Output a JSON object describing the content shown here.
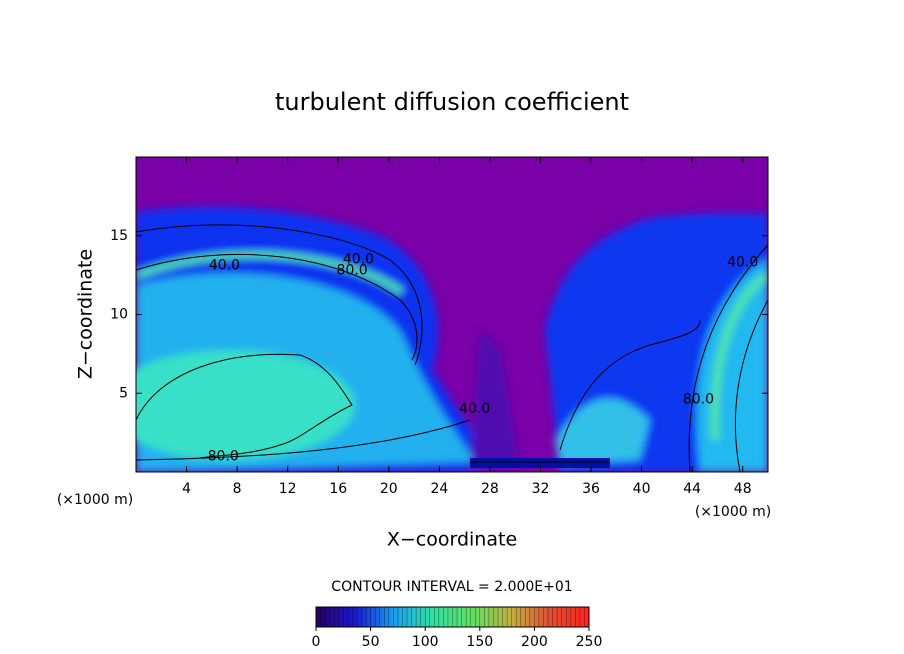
{
  "chart_data": {
    "type": "contour",
    "title": "turbulent diffusion coefficient",
    "x_label": "X−coordinate",
    "y_label": "Z−coordinate",
    "x_unit": "(×1000 m)",
    "x_unit_right": "(×1000 m)",
    "xlim": [
      0,
      50
    ],
    "ylim": [
      0,
      20
    ],
    "xticks": [
      4,
      8,
      12,
      16,
      20,
      24,
      28,
      32,
      36,
      40,
      44,
      48
    ],
    "yticks": [
      5,
      10,
      15
    ],
    "contour_interval": "CONTOUR INTERVAL = 2.000E+01",
    "contour_labels": [
      {
        "value": 40,
        "label": "40.0",
        "x": 17.6,
        "z": 13.5
      },
      {
        "value": 80,
        "label": "80.0",
        "x": 17.1,
        "z": 12.8
      },
      {
        "value": 40,
        "label": "40.0",
        "x": 7,
        "z": 13.1
      },
      {
        "value": 80,
        "label": "80.0",
        "x": 6.9,
        "z": 1
      },
      {
        "value": 40,
        "label": "40.0",
        "x": 26.8,
        "z": 4
      },
      {
        "value": 80,
        "label": "80.0",
        "x": 44.5,
        "z": 4.6
      },
      {
        "value": 40,
        "label": "40.0",
        "x": 48,
        "z": 13.3
      }
    ],
    "colorbar": {
      "lim": [
        0,
        250
      ],
      "ticks": [
        0,
        50,
        100,
        150,
        200,
        250
      ],
      "colors": [
        "#2a0060",
        "#1818d0",
        "#1aa0f0",
        "#30e0a0",
        "#60e060",
        "#c0b040",
        "#e05030",
        "#ff2020"
      ]
    }
  }
}
